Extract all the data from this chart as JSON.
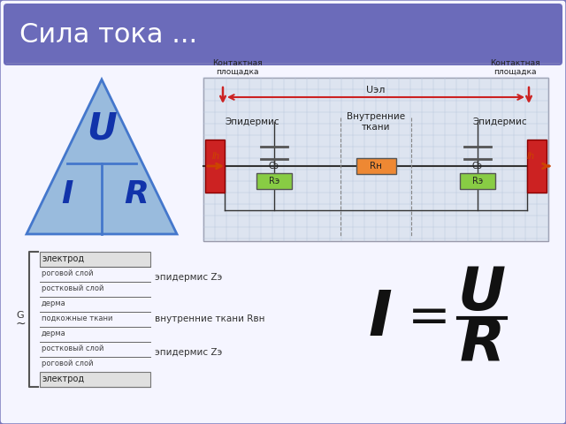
{
  "title": "Сила тока ...",
  "title_bg": "#6b6bba",
  "title_color": "#ffffff",
  "slide_bg": "#ffffff",
  "border_color": "#7777bb",
  "inner_bg": "#f5f5ff",
  "triangle_color": "#99bbdd",
  "triangle_border": "#4477cc",
  "tri_letter_color": "#1133aa",
  "formula_color": "#111111",
  "left_diagram_layers": [
    "электрод",
    "роговой слой",
    "ростковый слой",
    "дерма",
    "подкожные ткани",
    "дерма",
    "ростковый слой",
    "роговой слой",
    "электрод"
  ],
  "left_labels": [
    "эпидермис Zэ",
    "внутренние ткани Rвн",
    "эпидермис Zэ"
  ],
  "circuit": {
    "top_left": "Контактная\nплощадка",
    "top_right": "Контактная\nплощадка",
    "uэл": "Uэл",
    "epidermis_left": "Эпидермис",
    "tissues": "Внутренние\nткани",
    "epidermis_right": "Эпидермис",
    "r_left": "Rэ",
    "r_center": "Rн",
    "r_right": "Rэ",
    "c_left": "Cэ",
    "c_right": "Cэ",
    "ih": "Ih"
  }
}
